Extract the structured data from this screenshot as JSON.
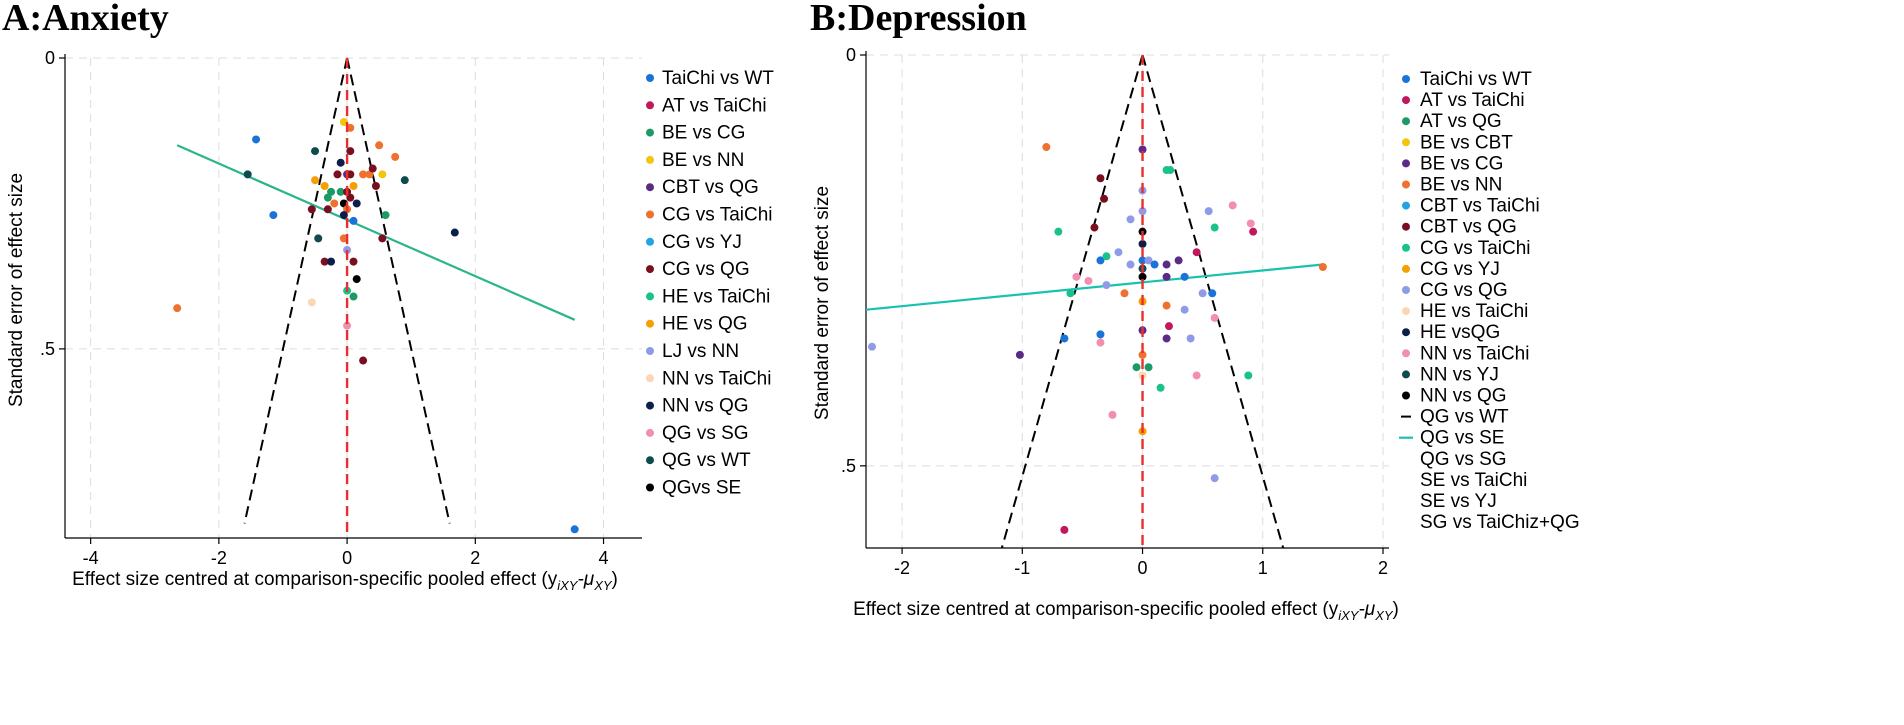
{
  "chart_data": [
    {
      "type": "scatter",
      "subtype": "comparison-adjusted funnel plot",
      "title": "A:Anxiety",
      "xlabel": "Effect size centred at comparison-specific pooled effect (y",
      "xlabel_sub": "iXY",
      "xlabel_mid": "-μ",
      "xlabel_sub2": "XY",
      "xlabel_end": ")",
      "ylabel": "Standard error of effect size",
      "xlim": [
        -4.4,
        4.6
      ],
      "ylim": [
        0,
        0.825
      ],
      "y_inverted": true,
      "x_ticks": [
        -4,
        -2,
        0,
        2,
        4
      ],
      "x_tick_labels": [
        "-4",
        "-2",
        "0",
        "2",
        "4"
      ],
      "y_ticks": [
        0,
        0.5
      ],
      "y_tick_labels": [
        "0",
        ".5"
      ],
      "legend_position": "right",
      "funnel": {
        "apex": [
          0,
          0
        ],
        "left_bottom": [
          -1.6,
          0.8
        ],
        "right_bottom": [
          1.6,
          0.8
        ]
      },
      "reference_line_x": 0,
      "regression_line": {
        "x": [
          -2.65,
          3.55
        ],
        "y": [
          0.15,
          0.45
        ],
        "color": "#2bb58a"
      },
      "legend": [
        {
          "label": "TaiChi vs WT",
          "color": "#1a73d8",
          "kind": "dot"
        },
        {
          "label": "AT vs TaiChi",
          "color": "#c2185b",
          "kind": "dot"
        },
        {
          "label": "BE vs CG",
          "color": "#1b9a66",
          "kind": "dot"
        },
        {
          "label": "BE vs NN",
          "color": "#f2c511",
          "kind": "dot"
        },
        {
          "label": "CBT vs QG",
          "color": "#5b2a86",
          "kind": "dot"
        },
        {
          "label": "CG vs TaiChi",
          "color": "#f07030",
          "kind": "dot"
        },
        {
          "label": "CG vs YJ",
          "color": "#23a3e6",
          "kind": "dot"
        },
        {
          "label": "CG vs QG",
          "color": "#7a0f1f",
          "kind": "dot"
        },
        {
          "label": "HE vs TaiChi",
          "color": "#19c28a",
          "kind": "dot"
        },
        {
          "label": "HE vs QG",
          "color": "#f5a000",
          "kind": "dot"
        },
        {
          "label": "LJ vs NN",
          "color": "#8f9be6",
          "kind": "dot"
        },
        {
          "label": "NN vs TaiChi",
          "color": "#fcd6b4",
          "kind": "dot"
        },
        {
          "label": "NN vs QG",
          "color": "#0b1f4a",
          "kind": "dot"
        },
        {
          "label": "QG vs SG",
          "color": "#f28fb0",
          "kind": "dot"
        },
        {
          "label": "QG vs WT",
          "color": "#0f4a4f",
          "kind": "dot"
        },
        {
          "label": "QGvs SE",
          "color": "#000000",
          "kind": "dot"
        }
      ],
      "points": [
        {
          "x": -2.65,
          "y": 0.43,
          "c": "#f07030"
        },
        {
          "x": -1.42,
          "y": 0.14,
          "c": "#1a73d8"
        },
        {
          "x": -1.15,
          "y": 0.27,
          "c": "#1a73d8"
        },
        {
          "x": -1.55,
          "y": 0.2,
          "c": "#0f4a4f"
        },
        {
          "x": -0.55,
          "y": 0.42,
          "c": "#fcd6b4"
        },
        {
          "x": -0.5,
          "y": 0.21,
          "c": "#f5a000"
        },
        {
          "x": -0.55,
          "y": 0.26,
          "c": "#7a0f1f"
        },
        {
          "x": -0.5,
          "y": 0.16,
          "c": "#0f4a4f"
        },
        {
          "x": -0.45,
          "y": 0.31,
          "c": "#0f4a4f"
        },
        {
          "x": -0.35,
          "y": 0.22,
          "c": "#f5a000"
        },
        {
          "x": -0.3,
          "y": 0.24,
          "c": "#1b9a66"
        },
        {
          "x": -0.25,
          "y": 0.23,
          "c": "#1b9a66"
        },
        {
          "x": -0.2,
          "y": 0.25,
          "c": "#f07030"
        },
        {
          "x": -0.3,
          "y": 0.26,
          "c": "#7a0f1f"
        },
        {
          "x": -0.1,
          "y": 0.23,
          "c": "#1b9a66"
        },
        {
          "x": -0.15,
          "y": 0.2,
          "c": "#7a0f1f"
        },
        {
          "x": -0.1,
          "y": 0.18,
          "c": "#0b1f4a"
        },
        {
          "x": -0.05,
          "y": 0.11,
          "c": "#f2c511"
        },
        {
          "x": 0.05,
          "y": 0.12,
          "c": "#f07030"
        },
        {
          "x": 0.05,
          "y": 0.16,
          "c": "#7a0f1f"
        },
        {
          "x": 0.0,
          "y": 0.2,
          "c": "#5b2a86"
        },
        {
          "x": 0.05,
          "y": 0.2,
          "c": "#7a0f1f"
        },
        {
          "x": 0.0,
          "y": 0.23,
          "c": "#7a0f1f"
        },
        {
          "x": 0.05,
          "y": 0.24,
          "c": "#7a0f1f"
        },
        {
          "x": -0.05,
          "y": 0.25,
          "c": "#000000"
        },
        {
          "x": 0.0,
          "y": 0.26,
          "c": "#f07030"
        },
        {
          "x": -0.05,
          "y": 0.27,
          "c": "#0b1f4a"
        },
        {
          "x": -0.05,
          "y": 0.31,
          "c": "#f07030"
        },
        {
          "x": 0.0,
          "y": 0.33,
          "c": "#8f9be6"
        },
        {
          "x": 0.1,
          "y": 0.22,
          "c": "#f5a000"
        },
        {
          "x": 0.15,
          "y": 0.25,
          "c": "#0b1f4a"
        },
        {
          "x": 0.1,
          "y": 0.28,
          "c": "#1a73d8"
        },
        {
          "x": 0.25,
          "y": 0.2,
          "c": "#f07030"
        },
        {
          "x": 0.35,
          "y": 0.2,
          "c": "#f07030"
        },
        {
          "x": 0.4,
          "y": 0.19,
          "c": "#7a0f1f"
        },
        {
          "x": 0.45,
          "y": 0.22,
          "c": "#7a0f1f"
        },
        {
          "x": 0.55,
          "y": 0.2,
          "c": "#f2c511"
        },
        {
          "x": 0.5,
          "y": 0.15,
          "c": "#f07030"
        },
        {
          "x": 0.6,
          "y": 0.27,
          "c": "#1b9a66"
        },
        {
          "x": 0.55,
          "y": 0.31,
          "c": "#7a0f1f"
        },
        {
          "x": 0.75,
          "y": 0.17,
          "c": "#f07030"
        },
        {
          "x": 0.9,
          "y": 0.21,
          "c": "#0f4a4f"
        },
        {
          "x": 1.68,
          "y": 0.3,
          "c": "#0b1f4a"
        },
        {
          "x": -0.35,
          "y": 0.35,
          "c": "#7a0f1f"
        },
        {
          "x": -0.25,
          "y": 0.35,
          "c": "#0b1f4a"
        },
        {
          "x": 0.1,
          "y": 0.35,
          "c": "#7a0f1f"
        },
        {
          "x": 0.15,
          "y": 0.38,
          "c": "#000000"
        },
        {
          "x": 0.1,
          "y": 0.41,
          "c": "#1b9a66"
        },
        {
          "x": 0.0,
          "y": 0.4,
          "c": "#19c28a"
        },
        {
          "x": 0.0,
          "y": 0.46,
          "c": "#f28fb0"
        },
        {
          "x": 0.25,
          "y": 0.52,
          "c": "#7a0f1f"
        },
        {
          "x": 3.55,
          "y": 0.81,
          "c": "#1a73d8"
        }
      ]
    },
    {
      "type": "scatter",
      "subtype": "comparison-adjusted funnel plot",
      "title": "B:Depression",
      "xlabel": "Effect size centred at comparison-specific pooled effect (y",
      "xlabel_sub": "iXY",
      "xlabel_mid": "-μ",
      "xlabel_sub2": "XY",
      "xlabel_end": ")",
      "ylabel": "Standard error of effect size",
      "xlim": [
        -2.3,
        2.05
      ],
      "ylim": [
        0,
        0.6
      ],
      "y_inverted": true,
      "x_ticks": [
        -2,
        -1,
        0,
        1,
        2
      ],
      "x_tick_labels": [
        "-2",
        "-1",
        "0",
        "1",
        "2"
      ],
      "y_ticks": [
        0,
        0.5
      ],
      "y_tick_labels": [
        "0",
        ".5"
      ],
      "legend_position": "right",
      "funnel": {
        "apex": [
          0,
          0
        ],
        "left_bottom": [
          -1.17,
          0.6
        ],
        "right_bottom": [
          1.17,
          0.6
        ]
      },
      "reference_line_x": 0,
      "regression_line": {
        "x": [
          -2.3,
          1.5
        ],
        "y": [
          0.31,
          0.255
        ],
        "color": "#19c2b0"
      },
      "legend": [
        {
          "label": "TaiChi vs WT",
          "color": "#1a73d8",
          "kind": "dot"
        },
        {
          "label": "AT vs TaiChi",
          "color": "#c2185b",
          "kind": "dot"
        },
        {
          "label": "AT vs QG",
          "color": "#1b9a66",
          "kind": "dot"
        },
        {
          "label": "BE vs CBT",
          "color": "#f2c511",
          "kind": "dot"
        },
        {
          "label": "BE vs CG",
          "color": "#5b2a86",
          "kind": "dot"
        },
        {
          "label": "BE vs NN",
          "color": "#f07030",
          "kind": "dot"
        },
        {
          "label": "CBT vs TaiChi",
          "color": "#23a3e6",
          "kind": "dot"
        },
        {
          "label": "CBT vs QG",
          "color": "#7a0f1f",
          "kind": "dot"
        },
        {
          "label": "CG vs TaiChi",
          "color": "#19c28a",
          "kind": "dot"
        },
        {
          "label": "CG vs YJ",
          "color": "#f5a000",
          "kind": "dot"
        },
        {
          "label": "CG vs QG",
          "color": "#8f9be6",
          "kind": "dot"
        },
        {
          "label": "HE vs TaiChi",
          "color": "#fcd6b4",
          "kind": "dot"
        },
        {
          "label": "HE vsQG",
          "color": "#0b1f4a",
          "kind": "dot"
        },
        {
          "label": "NN vs TaiChi",
          "color": "#f28fb0",
          "kind": "dot"
        },
        {
          "label": "NN vs YJ",
          "color": "#0f4a4f",
          "kind": "dot"
        },
        {
          "label": "NN vs QG",
          "color": "#000000",
          "kind": "dot"
        },
        {
          "label": "QG vs WT",
          "color": "#000000",
          "kind": "dash"
        },
        {
          "label": "QG vs SE",
          "color": "#19c2b0",
          "kind": "line"
        },
        {
          "label": "QG vs SG",
          "color": "",
          "kind": "none"
        },
        {
          "label": "SE vs TaiChi",
          "color": "",
          "kind": "none"
        },
        {
          "label": "SE vs YJ",
          "color": "",
          "kind": "none"
        },
        {
          "label": "SG vs TaiChiz+QG",
          "color": "",
          "kind": "none"
        }
      ],
      "points": [
        {
          "x": -2.25,
          "y": 0.355,
          "c": "#8f9be6"
        },
        {
          "x": -1.02,
          "y": 0.365,
          "c": "#5b2a86"
        },
        {
          "x": -0.8,
          "y": 0.112,
          "c": "#f07030"
        },
        {
          "x": -0.7,
          "y": 0.215,
          "c": "#19c28a"
        },
        {
          "x": -0.65,
          "y": 0.345,
          "c": "#1a73d8"
        },
        {
          "x": -0.6,
          "y": 0.29,
          "c": "#19c28a"
        },
        {
          "x": -0.55,
          "y": 0.27,
          "c": "#f28fb0"
        },
        {
          "x": -0.45,
          "y": 0.275,
          "c": "#f28fb0"
        },
        {
          "x": -0.4,
          "y": 0.21,
          "c": "#7a0f1f"
        },
        {
          "x": -0.35,
          "y": 0.15,
          "c": "#7a0f1f"
        },
        {
          "x": -0.35,
          "y": 0.25,
          "c": "#1a73d8"
        },
        {
          "x": -0.32,
          "y": 0.175,
          "c": "#7a0f1f"
        },
        {
          "x": -0.3,
          "y": 0.28,
          "c": "#8f9be6"
        },
        {
          "x": -0.35,
          "y": 0.34,
          "c": "#1a73d8"
        },
        {
          "x": -0.35,
          "y": 0.35,
          "c": "#f28fb0"
        },
        {
          "x": -0.3,
          "y": 0.245,
          "c": "#19c28a"
        },
        {
          "x": -0.2,
          "y": 0.24,
          "c": "#8f9be6"
        },
        {
          "x": -0.15,
          "y": 0.29,
          "c": "#f07030"
        },
        {
          "x": -0.1,
          "y": 0.2,
          "c": "#8f9be6"
        },
        {
          "x": -0.1,
          "y": 0.255,
          "c": "#8f9be6"
        },
        {
          "x": -0.05,
          "y": 0.38,
          "c": "#1b9a66"
        },
        {
          "x": -0.25,
          "y": 0.438,
          "c": "#f28fb0"
        },
        {
          "x": 0.0,
          "y": 0.115,
          "c": "#5b2a86"
        },
        {
          "x": 0.0,
          "y": 0.165,
          "c": "#8f9be6"
        },
        {
          "x": 0.0,
          "y": 0.19,
          "c": "#8f9be6"
        },
        {
          "x": 0.0,
          "y": 0.215,
          "c": "#000000"
        },
        {
          "x": 0.0,
          "y": 0.23,
          "c": "#0b1f4a"
        },
        {
          "x": 0.0,
          "y": 0.25,
          "c": "#1a73d8"
        },
        {
          "x": 0.0,
          "y": 0.26,
          "c": "#0f4a4f"
        },
        {
          "x": 0.0,
          "y": 0.27,
          "c": "#000000"
        },
        {
          "x": 0.0,
          "y": 0.3,
          "c": "#f5a000"
        },
        {
          "x": 0.0,
          "y": 0.335,
          "c": "#5b2a86"
        },
        {
          "x": 0.0,
          "y": 0.365,
          "c": "#f07030"
        },
        {
          "x": 0.0,
          "y": 0.39,
          "c": "#fcd6b4"
        },
        {
          "x": 0.0,
          "y": 0.458,
          "c": "#f5a000"
        },
        {
          "x": 0.05,
          "y": 0.25,
          "c": "#8f9be6"
        },
        {
          "x": 0.05,
          "y": 0.38,
          "c": "#1b9a66"
        },
        {
          "x": 0.1,
          "y": 0.255,
          "c": "#1a73d8"
        },
        {
          "x": 0.15,
          "y": 0.405,
          "c": "#19c28a"
        },
        {
          "x": 0.2,
          "y": 0.14,
          "c": "#19c28a"
        },
        {
          "x": 0.2,
          "y": 0.27,
          "c": "#5b2a86"
        },
        {
          "x": 0.2,
          "y": 0.305,
          "c": "#f07030"
        },
        {
          "x": 0.2,
          "y": 0.345,
          "c": "#5b2a86"
        },
        {
          "x": 0.2,
          "y": 0.255,
          "c": "#5b2a86"
        },
        {
          "x": 0.23,
          "y": 0.14,
          "c": "#19c28a"
        },
        {
          "x": 0.22,
          "y": 0.33,
          "c": "#c2185b"
        },
        {
          "x": 0.3,
          "y": 0.25,
          "c": "#5b2a86"
        },
        {
          "x": 0.35,
          "y": 0.27,
          "c": "#1a73d8"
        },
        {
          "x": 0.35,
          "y": 0.31,
          "c": "#8f9be6"
        },
        {
          "x": 0.4,
          "y": 0.345,
          "c": "#8f9be6"
        },
        {
          "x": 0.45,
          "y": 0.24,
          "c": "#c2185b"
        },
        {
          "x": 0.45,
          "y": 0.39,
          "c": "#f28fb0"
        },
        {
          "x": 0.5,
          "y": 0.29,
          "c": "#8f9be6"
        },
        {
          "x": 0.55,
          "y": 0.19,
          "c": "#8f9be6"
        },
        {
          "x": 0.58,
          "y": 0.29,
          "c": "#1a73d8"
        },
        {
          "x": 0.6,
          "y": 0.32,
          "c": "#f28fb0"
        },
        {
          "x": 0.6,
          "y": 0.21,
          "c": "#19c28a"
        },
        {
          "x": 0.6,
          "y": 0.515,
          "c": "#8f9be6"
        },
        {
          "x": 0.75,
          "y": 0.183,
          "c": "#f28fb0"
        },
        {
          "x": 0.88,
          "y": 0.39,
          "c": "#19c28a"
        },
        {
          "x": 0.9,
          "y": 0.205,
          "c": "#f28fb0"
        },
        {
          "x": 0.92,
          "y": 0.215,
          "c": "#c2185b"
        },
        {
          "x": 1.5,
          "y": 0.258,
          "c": "#f07030"
        },
        {
          "x": -0.65,
          "y": 0.578,
          "c": "#c2185b"
        }
      ]
    }
  ]
}
